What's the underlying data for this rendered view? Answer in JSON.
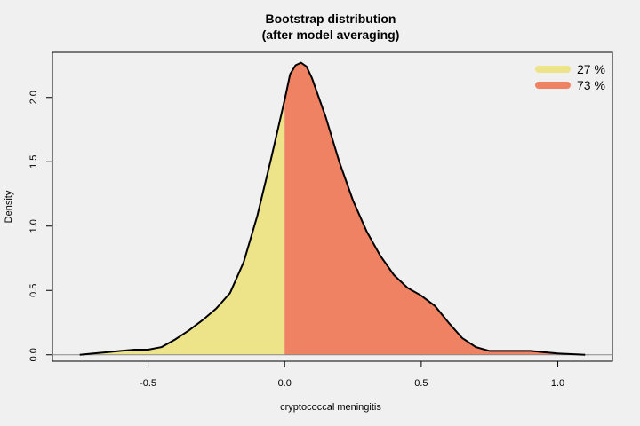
{
  "chart_data": {
    "type": "area",
    "title": "Bootstrap distribution",
    "subtitle": "(after model averaging)",
    "xlabel": "cryptococcal meningitis",
    "ylabel": "Density",
    "xlim": [
      -0.85,
      1.2
    ],
    "ylim": [
      -0.05,
      2.35
    ],
    "x_ticks": [
      "-0.5",
      "0.0",
      "0.5",
      "1.0"
    ],
    "y_ticks": [
      "0.0",
      "0.5",
      "1.0",
      "1.5",
      "2.0"
    ],
    "split_at": 0.0,
    "grid": false,
    "legend_position": "top-right",
    "series": [
      {
        "name": "27 %",
        "color": "#ede48a",
        "x_range": [
          -0.75,
          0.0
        ]
      },
      {
        "name": "73 %",
        "color": "#ef8263",
        "x_range": [
          0.0,
          1.1
        ]
      }
    ],
    "density_curve": {
      "x": [
        -0.75,
        -0.7,
        -0.65,
        -0.6,
        -0.55,
        -0.5,
        -0.45,
        -0.4,
        -0.35,
        -0.3,
        -0.25,
        -0.2,
        -0.15,
        -0.1,
        -0.05,
        0.0,
        0.02,
        0.04,
        0.06,
        0.08,
        0.1,
        0.15,
        0.2,
        0.25,
        0.3,
        0.35,
        0.4,
        0.45,
        0.5,
        0.55,
        0.6,
        0.65,
        0.7,
        0.75,
        0.8,
        0.85,
        0.9,
        0.95,
        1.0,
        1.05,
        1.1
      ],
      "y": [
        0.0,
        0.01,
        0.02,
        0.03,
        0.04,
        0.04,
        0.06,
        0.12,
        0.19,
        0.27,
        0.36,
        0.48,
        0.72,
        1.08,
        1.52,
        1.98,
        2.18,
        2.25,
        2.27,
        2.24,
        2.15,
        1.85,
        1.5,
        1.2,
        0.96,
        0.77,
        0.62,
        0.52,
        0.46,
        0.38,
        0.25,
        0.13,
        0.06,
        0.03,
        0.03,
        0.03,
        0.03,
        0.02,
        0.01,
        0.005,
        0.0
      ]
    }
  }
}
